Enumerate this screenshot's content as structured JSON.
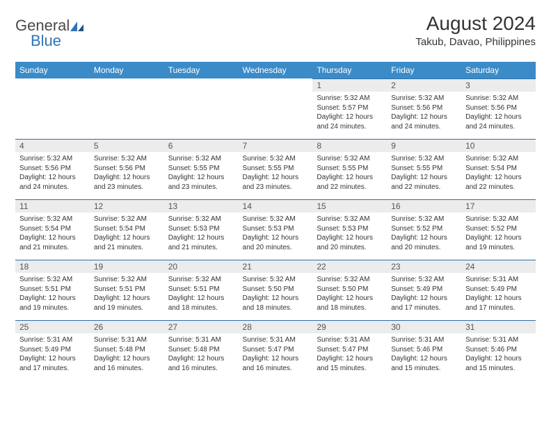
{
  "logo": {
    "general": "General",
    "blue": "Blue"
  },
  "title": "August 2024",
  "location": "Takub, Davao, Philippines",
  "weekdays": [
    "Sunday",
    "Monday",
    "Tuesday",
    "Wednesday",
    "Thursday",
    "Friday",
    "Saturday"
  ],
  "colors": {
    "header_bg": "#3b8bc8",
    "header_text": "#ffffff",
    "daynum_bg": "#ececec",
    "daynum_border": "#2e6da4",
    "text": "#333333",
    "logo_blue": "#2e75b6"
  },
  "grid": {
    "first_weekday_index": 4,
    "rows": 5,
    "cols": 7
  },
  "days": [
    {
      "n": 1,
      "sunrise": "5:32 AM",
      "sunset": "5:57 PM",
      "daylight": "12 hours and 24 minutes."
    },
    {
      "n": 2,
      "sunrise": "5:32 AM",
      "sunset": "5:56 PM",
      "daylight": "12 hours and 24 minutes."
    },
    {
      "n": 3,
      "sunrise": "5:32 AM",
      "sunset": "5:56 PM",
      "daylight": "12 hours and 24 minutes."
    },
    {
      "n": 4,
      "sunrise": "5:32 AM",
      "sunset": "5:56 PM",
      "daylight": "12 hours and 24 minutes."
    },
    {
      "n": 5,
      "sunrise": "5:32 AM",
      "sunset": "5:56 PM",
      "daylight": "12 hours and 23 minutes."
    },
    {
      "n": 6,
      "sunrise": "5:32 AM",
      "sunset": "5:55 PM",
      "daylight": "12 hours and 23 minutes."
    },
    {
      "n": 7,
      "sunrise": "5:32 AM",
      "sunset": "5:55 PM",
      "daylight": "12 hours and 23 minutes."
    },
    {
      "n": 8,
      "sunrise": "5:32 AM",
      "sunset": "5:55 PM",
      "daylight": "12 hours and 22 minutes."
    },
    {
      "n": 9,
      "sunrise": "5:32 AM",
      "sunset": "5:55 PM",
      "daylight": "12 hours and 22 minutes."
    },
    {
      "n": 10,
      "sunrise": "5:32 AM",
      "sunset": "5:54 PM",
      "daylight": "12 hours and 22 minutes."
    },
    {
      "n": 11,
      "sunrise": "5:32 AM",
      "sunset": "5:54 PM",
      "daylight": "12 hours and 21 minutes."
    },
    {
      "n": 12,
      "sunrise": "5:32 AM",
      "sunset": "5:54 PM",
      "daylight": "12 hours and 21 minutes."
    },
    {
      "n": 13,
      "sunrise": "5:32 AM",
      "sunset": "5:53 PM",
      "daylight": "12 hours and 21 minutes."
    },
    {
      "n": 14,
      "sunrise": "5:32 AM",
      "sunset": "5:53 PM",
      "daylight": "12 hours and 20 minutes."
    },
    {
      "n": 15,
      "sunrise": "5:32 AM",
      "sunset": "5:53 PM",
      "daylight": "12 hours and 20 minutes."
    },
    {
      "n": 16,
      "sunrise": "5:32 AM",
      "sunset": "5:52 PM",
      "daylight": "12 hours and 20 minutes."
    },
    {
      "n": 17,
      "sunrise": "5:32 AM",
      "sunset": "5:52 PM",
      "daylight": "12 hours and 19 minutes."
    },
    {
      "n": 18,
      "sunrise": "5:32 AM",
      "sunset": "5:51 PM",
      "daylight": "12 hours and 19 minutes."
    },
    {
      "n": 19,
      "sunrise": "5:32 AM",
      "sunset": "5:51 PM",
      "daylight": "12 hours and 19 minutes."
    },
    {
      "n": 20,
      "sunrise": "5:32 AM",
      "sunset": "5:51 PM",
      "daylight": "12 hours and 18 minutes."
    },
    {
      "n": 21,
      "sunrise": "5:32 AM",
      "sunset": "5:50 PM",
      "daylight": "12 hours and 18 minutes."
    },
    {
      "n": 22,
      "sunrise": "5:32 AM",
      "sunset": "5:50 PM",
      "daylight": "12 hours and 18 minutes."
    },
    {
      "n": 23,
      "sunrise": "5:32 AM",
      "sunset": "5:49 PM",
      "daylight": "12 hours and 17 minutes."
    },
    {
      "n": 24,
      "sunrise": "5:31 AM",
      "sunset": "5:49 PM",
      "daylight": "12 hours and 17 minutes."
    },
    {
      "n": 25,
      "sunrise": "5:31 AM",
      "sunset": "5:49 PM",
      "daylight": "12 hours and 17 minutes."
    },
    {
      "n": 26,
      "sunrise": "5:31 AM",
      "sunset": "5:48 PM",
      "daylight": "12 hours and 16 minutes."
    },
    {
      "n": 27,
      "sunrise": "5:31 AM",
      "sunset": "5:48 PM",
      "daylight": "12 hours and 16 minutes."
    },
    {
      "n": 28,
      "sunrise": "5:31 AM",
      "sunset": "5:47 PM",
      "daylight": "12 hours and 16 minutes."
    },
    {
      "n": 29,
      "sunrise": "5:31 AM",
      "sunset": "5:47 PM",
      "daylight": "12 hours and 15 minutes."
    },
    {
      "n": 30,
      "sunrise": "5:31 AM",
      "sunset": "5:46 PM",
      "daylight": "12 hours and 15 minutes."
    },
    {
      "n": 31,
      "sunrise": "5:31 AM",
      "sunset": "5:46 PM",
      "daylight": "12 hours and 15 minutes."
    }
  ],
  "labels": {
    "sunrise": "Sunrise:",
    "sunset": "Sunset:",
    "daylight": "Daylight:"
  }
}
